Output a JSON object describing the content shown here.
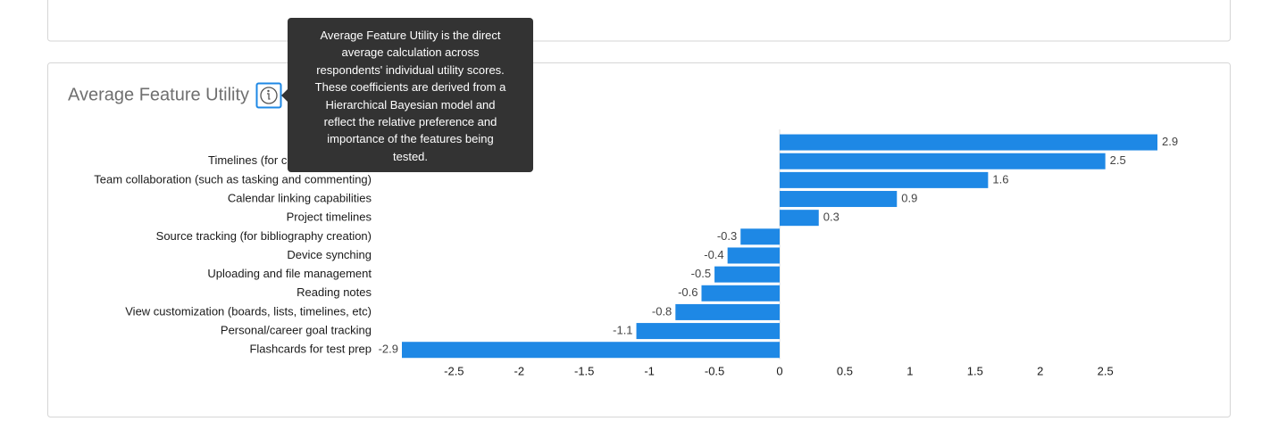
{
  "panel": {
    "title": "Average Feature Utility",
    "tooltip": [
      "Average Feature Utility is the direct",
      "average calculation across",
      "respondents' individual utility scores.",
      "These coefficients are derived from a",
      "Hierarchical Bayesian model and",
      "reflect the relative preference and",
      "importance of the features being",
      "tested."
    ]
  },
  "chart_data": {
    "type": "bar",
    "categories": [
      null,
      "Timelines (for course or project)",
      "Team collaboration (such as tasking and commenting)",
      "Calendar linking capabilities",
      "Project timelines",
      "Source tracking (for bibliography creation)",
      "Device synching",
      "Uploading and file management",
      "Reading notes",
      "View customization (boards, lists, timelines, etc)",
      "Personal/career goal tracking",
      "Flashcards for test prep"
    ],
    "values": [
      2.9,
      2.5,
      1.6,
      0.9,
      0.3,
      -0.3,
      -0.4,
      -0.5,
      -0.6,
      -0.8,
      -1.1,
      -2.9
    ],
    "color": "#1e88e5",
    "xlim": [
      -2.9,
      2.9
    ],
    "xticks": [
      -2.5,
      -2,
      -1.5,
      -1,
      -0.5,
      0,
      0.5,
      1,
      1.5,
      2,
      2.5
    ]
  }
}
